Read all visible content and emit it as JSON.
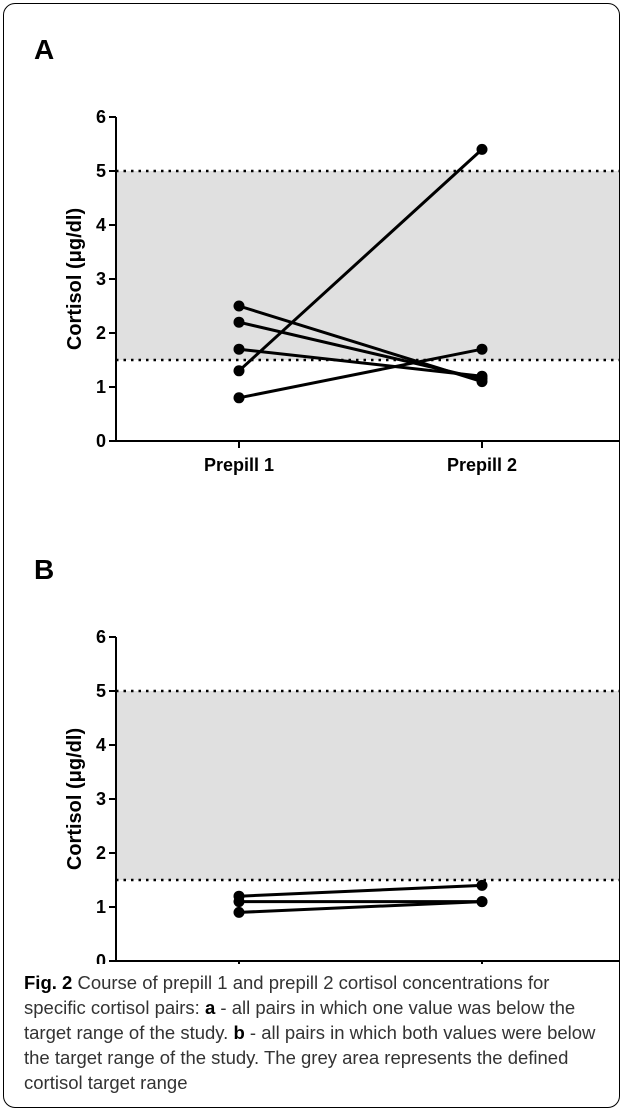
{
  "caption": {
    "fig_num": "Fig. 2",
    "text_1": " Course of prepill 1 and prepill 2 cortisol concentrations for specific cortisol pairs: ",
    "key_a": "a",
    "text_2": " - all pairs in which one value was below the target range of the study. ",
    "key_b": "b",
    "text_3": " - all pairs in which both values were below the target range of the study. The grey area represents the defined cortisol target range"
  },
  "colors": {
    "band": "#e0e0e0",
    "lines": "#000000"
  },
  "chart_data": [
    {
      "panel": "A",
      "type": "line",
      "categories": [
        "Prepill 1",
        "Prepill 2"
      ],
      "ylabel": "Cortisol (μg/dl)",
      "ylim": [
        0,
        6
      ],
      "yticks": [
        0,
        1,
        2,
        3,
        4,
        5,
        6
      ],
      "target_range": [
        1.5,
        5
      ],
      "series": [
        {
          "values": [
            2.5,
            1.1
          ]
        },
        {
          "values": [
            2.2,
            1.15
          ]
        },
        {
          "values": [
            1.7,
            1.2
          ]
        },
        {
          "values": [
            1.3,
            5.4
          ]
        },
        {
          "values": [
            0.8,
            1.7
          ]
        }
      ]
    },
    {
      "panel": "B",
      "type": "line",
      "categories": [
        "Prepill 1",
        "Prepill 2"
      ],
      "ylabel": "Cortisol (μg/dl)",
      "ylim": [
        0,
        6
      ],
      "yticks": [
        0,
        1,
        2,
        3,
        4,
        5,
        6
      ],
      "target_range": [
        1.5,
        5
      ],
      "series": [
        {
          "values": [
            1.2,
            1.4
          ]
        },
        {
          "values": [
            1.1,
            1.1
          ]
        },
        {
          "values": [
            0.9,
            1.1
          ]
        }
      ]
    }
  ]
}
